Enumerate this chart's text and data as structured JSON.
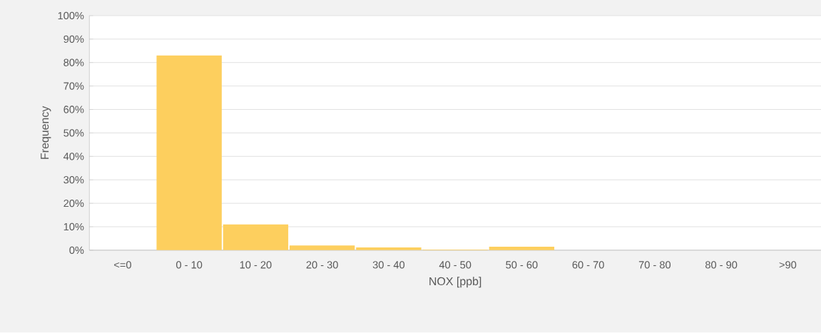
{
  "chart_data": {
    "type": "bar",
    "xlabel": "NOX [ppb]",
    "ylabel": "Frequency",
    "categories": [
      "<=0",
      "0 - 10",
      "10 - 20",
      "20 - 30",
      "30 - 40",
      "40 - 50",
      "50 - 60",
      "60 - 70",
      "70 - 80",
      "80 - 90",
      ">90"
    ],
    "values": [
      0,
      83,
      11,
      2,
      1.2,
      0.3,
      1.5,
      0,
      0,
      0,
      0
    ],
    "color": "#fdcf5e",
    "ylim": [
      0,
      100
    ],
    "yticks": [
      {
        "value": 0,
        "label": "0%"
      },
      {
        "value": 10,
        "label": "10%"
      },
      {
        "value": 20,
        "label": "20%"
      },
      {
        "value": 30,
        "label": "30%"
      },
      {
        "value": 40,
        "label": "40%"
      },
      {
        "value": 50,
        "label": "50%"
      },
      {
        "value": 60,
        "label": "60%"
      },
      {
        "value": 70,
        "label": "70%"
      },
      {
        "value": 80,
        "label": "80%"
      },
      {
        "value": 90,
        "label": "90%"
      },
      {
        "value": 100,
        "label": "100%"
      }
    ],
    "grid": "y"
  }
}
